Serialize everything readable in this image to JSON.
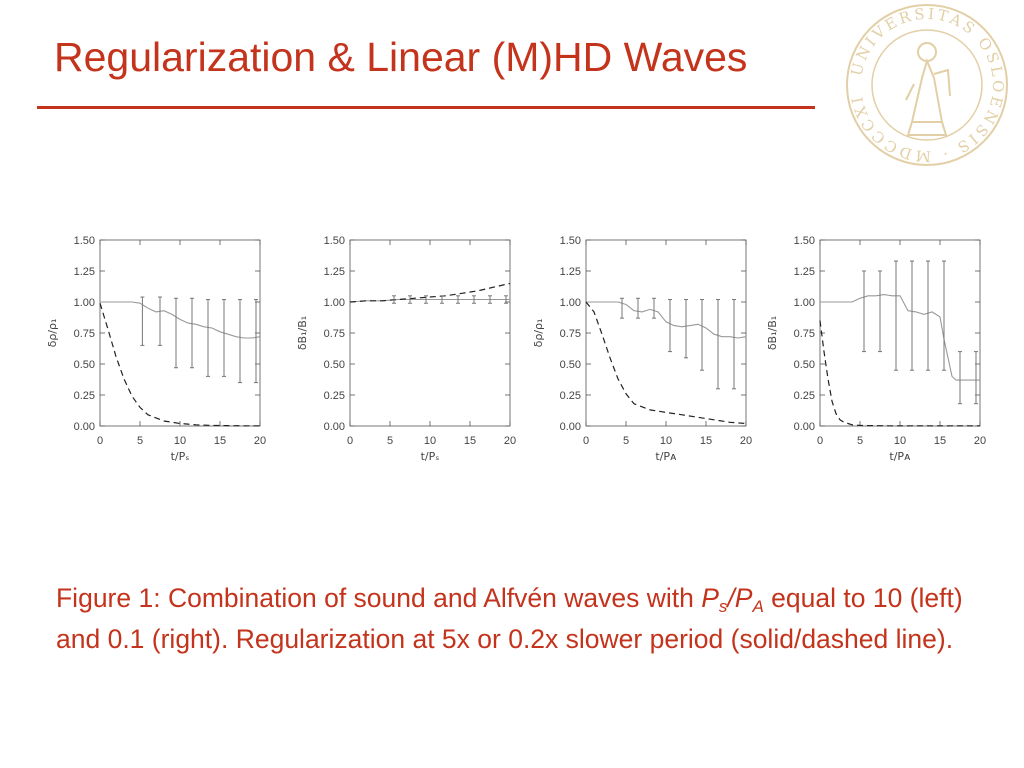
{
  "slide": {
    "title": "Regularization & Linear (M)HD Waves",
    "accent_color": "#c4331b"
  },
  "seal": {
    "text": "UNIVERSITAS OSLOENSIS · MDCCCXI ·",
    "color": "#e2cfa6"
  },
  "caption": {
    "part1": "Figure 1: Combination of sound and Alfvén waves with ",
    "ps_main": "P",
    "ps_sub": "s",
    "slash": "/",
    "pa_main": "P",
    "pa_sub": "A",
    "part2": " equal to 10 (left) and 0.1 (right). Regularization at 5x or 0.2x slower period (solid/dashed line)."
  },
  "chart_data": [
    {
      "type": "line",
      "ylabel": "δρ/ρ₁",
      "xlabel": "t/Pₛ",
      "xlim": [
        0,
        20
      ],
      "ylim": [
        0,
        1.5
      ],
      "xticks": [
        "0",
        "5",
        "10",
        "15",
        "20"
      ],
      "yticks": [
        "0.00",
        "0.25",
        "0.50",
        "0.75",
        "1.00",
        "1.25",
        "1.50"
      ],
      "series": [
        {
          "style": "solid",
          "x": [
            0,
            1,
            2,
            3,
            4,
            5,
            6,
            7,
            8,
            9,
            10,
            11,
            12,
            13,
            14,
            15,
            16,
            17,
            18,
            19,
            20
          ],
          "y": [
            1.0,
            1.0,
            1.0,
            1.0,
            1.0,
            0.99,
            0.95,
            0.92,
            0.93,
            0.9,
            0.86,
            0.83,
            0.82,
            0.8,
            0.79,
            0.76,
            0.74,
            0.72,
            0.71,
            0.71,
            0.72
          ]
        },
        {
          "style": "dashed",
          "x": [
            0,
            1,
            2,
            3,
            4,
            5,
            6,
            8,
            10,
            12,
            14,
            16,
            18,
            20
          ],
          "y": [
            0.99,
            0.78,
            0.56,
            0.38,
            0.24,
            0.15,
            0.09,
            0.04,
            0.02,
            0.01,
            0.005,
            0.003,
            0.002,
            0.002
          ]
        }
      ],
      "errorbars": [
        {
          "x": 5.3,
          "lo": 0.65,
          "hi": 1.04
        },
        {
          "x": 7.5,
          "lo": 0.65,
          "hi": 1.04
        },
        {
          "x": 9.5,
          "lo": 0.47,
          "hi": 1.03
        },
        {
          "x": 11.5,
          "lo": 0.47,
          "hi": 1.03
        },
        {
          "x": 13.5,
          "lo": 0.4,
          "hi": 1.02
        },
        {
          "x": 15.5,
          "lo": 0.4,
          "hi": 1.02
        },
        {
          "x": 17.5,
          "lo": 0.35,
          "hi": 1.02
        },
        {
          "x": 19.5,
          "lo": 0.35,
          "hi": 1.02
        }
      ]
    },
    {
      "type": "line",
      "ylabel": "δB₁/B₁",
      "xlabel": "t/Pₛ",
      "xlim": [
        0,
        20
      ],
      "ylim": [
        0,
        1.5
      ],
      "xticks": [
        "0",
        "5",
        "10",
        "15",
        "20"
      ],
      "yticks": [
        "0.00",
        "0.25",
        "0.50",
        "0.75",
        "1.00",
        "1.25",
        "1.50"
      ],
      "series": [
        {
          "style": "solid",
          "x": [
            0,
            2,
            4,
            6,
            8,
            10,
            12,
            14,
            16,
            18,
            20
          ],
          "y": [
            1.0,
            1.01,
            1.01,
            1.02,
            1.02,
            1.02,
            1.02,
            1.02,
            1.02,
            1.02,
            1.02
          ]
        },
        {
          "style": "dashed",
          "x": [
            0,
            2,
            4,
            6,
            8,
            10,
            12,
            14,
            16,
            18,
            20
          ],
          "y": [
            1.0,
            1.01,
            1.01,
            1.02,
            1.03,
            1.04,
            1.05,
            1.07,
            1.09,
            1.12,
            1.15
          ]
        }
      ],
      "errorbars": [
        {
          "x": 5.5,
          "lo": 0.99,
          "hi": 1.05
        },
        {
          "x": 7.5,
          "lo": 0.99,
          "hi": 1.05
        },
        {
          "x": 9.5,
          "lo": 0.99,
          "hi": 1.05
        },
        {
          "x": 11.5,
          "lo": 0.99,
          "hi": 1.05
        },
        {
          "x": 13.5,
          "lo": 0.99,
          "hi": 1.05
        },
        {
          "x": 15.5,
          "lo": 0.99,
          "hi": 1.05
        },
        {
          "x": 17.5,
          "lo": 0.99,
          "hi": 1.05
        },
        {
          "x": 19.5,
          "lo": 0.99,
          "hi": 1.05
        }
      ]
    },
    {
      "type": "line",
      "ylabel": "δρ/ρ₁",
      "xlabel": "t/Pᴀ",
      "xlim": [
        0,
        20
      ],
      "ylim": [
        0,
        1.5
      ],
      "xticks": [
        "0",
        "5",
        "10",
        "15",
        "20"
      ],
      "yticks": [
        "0.00",
        "0.25",
        "0.50",
        "0.75",
        "1.00",
        "1.25",
        "1.50"
      ],
      "series": [
        {
          "style": "solid",
          "x": [
            0,
            1,
            2,
            3,
            4,
            5,
            6,
            7,
            8,
            9,
            10,
            11,
            12,
            13,
            14,
            15,
            16,
            17,
            18,
            19,
            20
          ],
          "y": [
            1.0,
            1.0,
            1.0,
            1.0,
            1.0,
            0.98,
            0.93,
            0.92,
            0.94,
            0.92,
            0.84,
            0.81,
            0.8,
            0.81,
            0.82,
            0.79,
            0.74,
            0.72,
            0.72,
            0.71,
            0.72
          ]
        },
        {
          "style": "dashed",
          "x": [
            0,
            1,
            2,
            3,
            4,
            5,
            6,
            8,
            10,
            12,
            14,
            16,
            18,
            20
          ],
          "y": [
            1.0,
            0.92,
            0.74,
            0.55,
            0.38,
            0.26,
            0.18,
            0.13,
            0.11,
            0.09,
            0.07,
            0.05,
            0.03,
            0.02
          ]
        }
      ],
      "errorbars": [
        {
          "x": 4.5,
          "lo": 0.87,
          "hi": 1.03
        },
        {
          "x": 6.5,
          "lo": 0.87,
          "hi": 1.03
        },
        {
          "x": 8.5,
          "lo": 0.87,
          "hi": 1.03
        },
        {
          "x": 10.5,
          "lo": 0.6,
          "hi": 1.02
        },
        {
          "x": 12.5,
          "lo": 0.55,
          "hi": 1.02
        },
        {
          "x": 14.5,
          "lo": 0.45,
          "hi": 1.02
        },
        {
          "x": 16.5,
          "lo": 0.3,
          "hi": 1.02
        },
        {
          "x": 18.5,
          "lo": 0.3,
          "hi": 1.02
        }
      ]
    },
    {
      "type": "line",
      "ylabel": "δB₁/B₁",
      "xlabel": "t/Pᴀ",
      "xlim": [
        0,
        20
      ],
      "ylim": [
        0,
        1.5
      ],
      "xticks": [
        "0",
        "5",
        "10",
        "15",
        "20"
      ],
      "yticks": [
        "0.00",
        "0.25",
        "0.50",
        "0.75",
        "1.00",
        "1.25",
        "1.50"
      ],
      "series": [
        {
          "style": "solid",
          "x": [
            0,
            1,
            2,
            3,
            4,
            5,
            6,
            7,
            8,
            9,
            10,
            11,
            12,
            13,
            14,
            14.5,
            15,
            15.5,
            16,
            16.5,
            17,
            18,
            19,
            20
          ],
          "y": [
            1.0,
            1.0,
            1.0,
            1.0,
            1.0,
            1.03,
            1.05,
            1.05,
            1.06,
            1.05,
            1.05,
            0.93,
            0.92,
            0.9,
            0.92,
            0.9,
            0.88,
            0.7,
            0.55,
            0.4,
            0.37,
            0.37,
            0.37,
            0.37
          ]
        },
        {
          "style": "dashed",
          "x": [
            0,
            0.5,
            1,
            1.5,
            2,
            2.5,
            3,
            3.5,
            4,
            5,
            6,
            8,
            10,
            12,
            14,
            16,
            18,
            20
          ],
          "y": [
            0.85,
            0.6,
            0.38,
            0.2,
            0.1,
            0.05,
            0.03,
            0.02,
            0.01,
            0.005,
            0.003,
            0.002,
            0.001,
            0.001,
            0.001,
            0.001,
            0.001,
            0.001
          ]
        }
      ],
      "errorbars": [
        {
          "x": 5.5,
          "lo": 0.6,
          "hi": 1.25
        },
        {
          "x": 7.5,
          "lo": 0.6,
          "hi": 1.25
        },
        {
          "x": 9.5,
          "lo": 0.45,
          "hi": 1.33
        },
        {
          "x": 11.5,
          "lo": 0.45,
          "hi": 1.33
        },
        {
          "x": 13.5,
          "lo": 0.45,
          "hi": 1.33
        },
        {
          "x": 15.5,
          "lo": 0.45,
          "hi": 1.33
        },
        {
          "x": 17.5,
          "lo": 0.18,
          "hi": 0.6
        },
        {
          "x": 19.5,
          "lo": 0.18,
          "hi": 0.6
        }
      ]
    }
  ]
}
